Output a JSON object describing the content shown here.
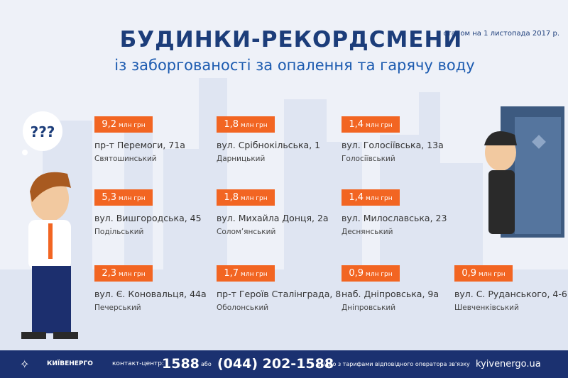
{
  "header": {
    "title": "БУДИНКИ-РЕКОРДСМЕНИ",
    "subtitle": "із заборгованості за опалення та гарячу воду",
    "date": "станом на 1 листопада 2017 р."
  },
  "thought_bubble": "???",
  "unit": "млн грн",
  "colors": {
    "accent": "#f26522",
    "title": "#1c3d7a",
    "footer": "#1b3170"
  },
  "records": [
    {
      "amount": "9,2",
      "address": "пр-т Перемоги, 71а",
      "district": "Святошинський"
    },
    {
      "amount": "1,8",
      "address": "вул. Срібнокільська, 1",
      "district": "Дарницький"
    },
    {
      "amount": "1,4",
      "address": "вул. Голосіївська, 13а",
      "district": "Голосіївський"
    },
    {
      "amount": "5,3",
      "address": "вул. Вишгородська, 45",
      "district": "Подільський"
    },
    {
      "amount": "1,8",
      "address": "вул. Михайла Донця, 2а",
      "district": "Солом’янський"
    },
    {
      "amount": "1,4",
      "address": "вул. Милославська, 23",
      "district": "Деснянський"
    },
    {
      "amount": "2,3",
      "address": "вул. Є. Коновальця, 44а",
      "district": "Печерський"
    },
    {
      "amount": "1,7",
      "address": "пр-т Героїв Сталінграда, 8",
      "district": "Оболонський"
    },
    {
      "amount": "0,9",
      "address": "наб. Дніпровська, 9а",
      "district": "Дніпровський"
    },
    {
      "amount": "0,9",
      "address": "вул. С. Руданського, 4-6",
      "district": "Шевченківський"
    }
  ],
  "footer": {
    "logo": "КИЇВЕНЕРГО",
    "contact_label": "контакт-центр:",
    "short_number": "1588",
    "or": "або",
    "phone": "(044) 202-1588",
    "note": "згідно з тарифами відповідного оператора зв'язку",
    "website": "kyivenergo.ua"
  }
}
